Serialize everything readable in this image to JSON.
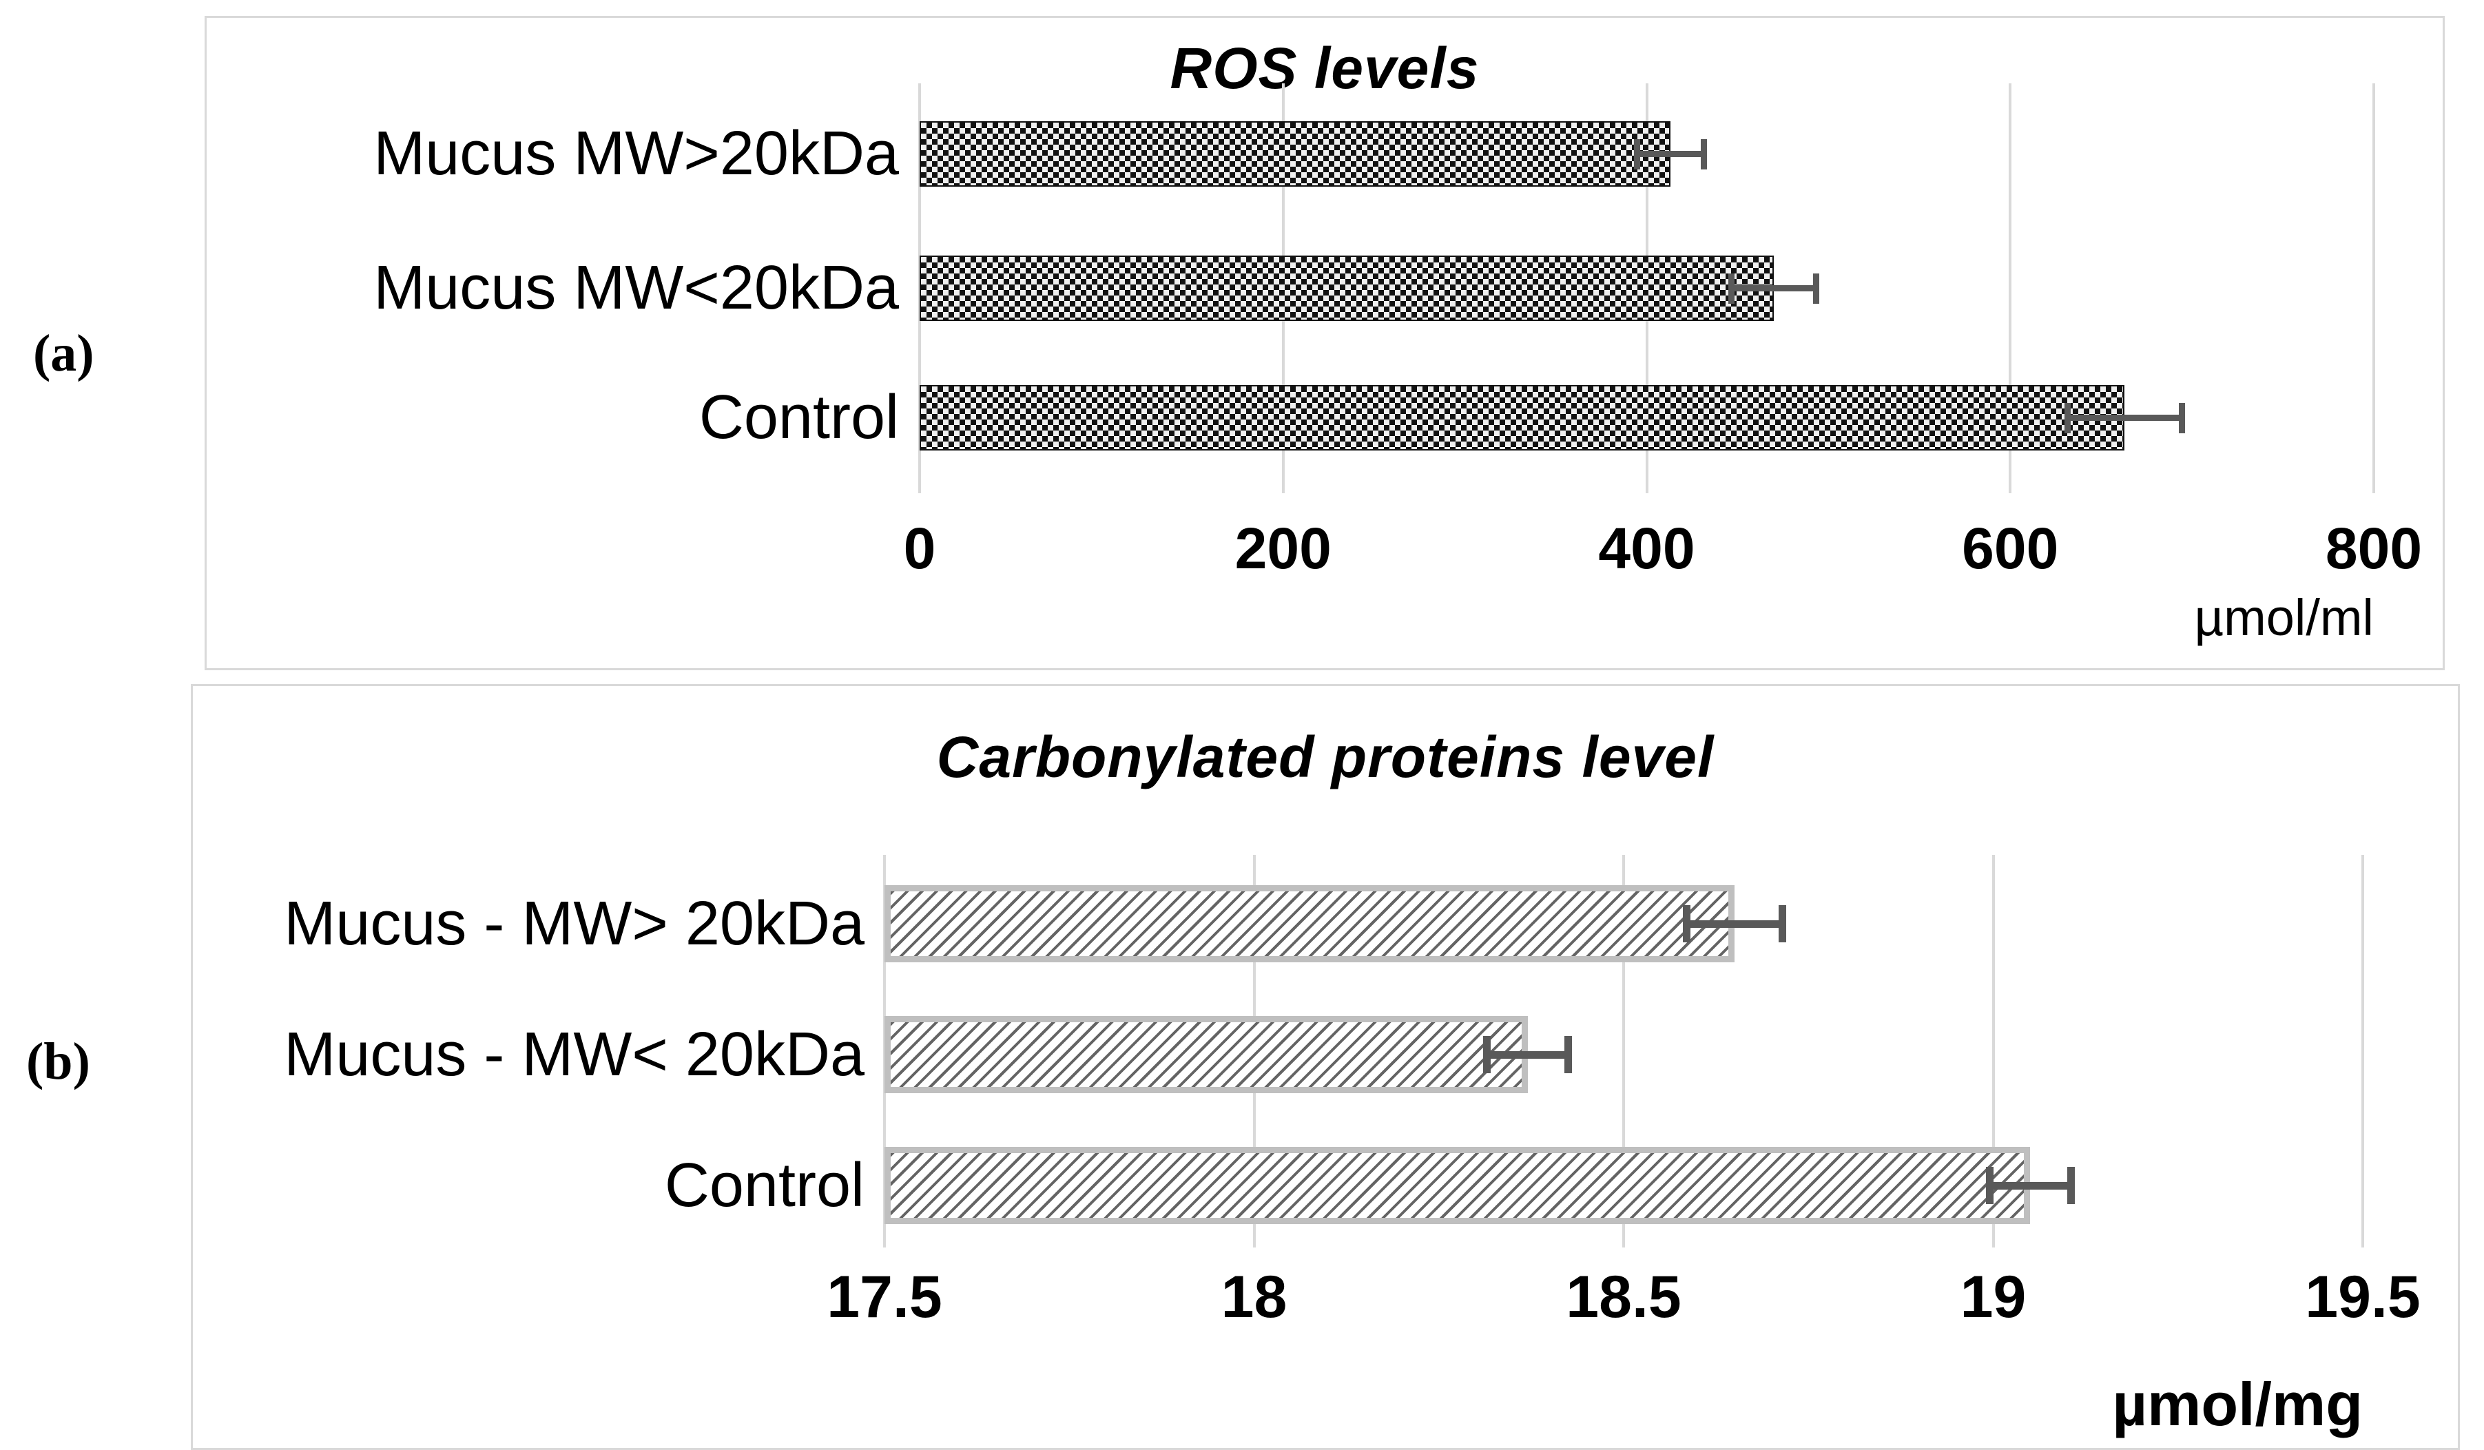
{
  "figure": {
    "panel_a_letter": "(a)",
    "panel_b_letter": "(b)"
  },
  "colors": {
    "gridline": "#d9d9d9",
    "panel_border": "#d9d9d9",
    "error_bar": "#595959",
    "hatch_line": "#646464",
    "hatch_bar_border": "#bfbfbf",
    "checker_dark": "#121212",
    "text": "#000000"
  },
  "chart_data": [
    {
      "id": "a",
      "type": "bar",
      "orientation": "horizontal",
      "title": "ROS levels",
      "categories": [
        "Mucus MW>20kDa",
        "Mucus MW<20kDa",
        "Control"
      ],
      "values": [
        413,
        470,
        663
      ],
      "errors": [
        20,
        25,
        33
      ],
      "xlabel": "µmol/ml",
      "xlim": [
        0,
        800
      ],
      "xticks": [
        0,
        200,
        400,
        600,
        800
      ],
      "xtick_labels": [
        "0",
        "200",
        "400",
        "600",
        "800"
      ],
      "grid": true,
      "legend": "none",
      "bar_pattern": "black-white-checkerboard"
    },
    {
      "id": "b",
      "type": "bar",
      "orientation": "horizontal",
      "title": "Carbonylated proteins level",
      "categories": [
        "Mucus - MW> 20kDa",
        "Mucus - MW< 20kDa",
        "Control"
      ],
      "values": [
        18.65,
        18.37,
        19.05
      ],
      "errors": [
        0.07,
        0.06,
        0.06
      ],
      "xlabel": "µmol/mg",
      "xlim": [
        17.5,
        19.5
      ],
      "xticks": [
        17.5,
        18,
        18.5,
        19,
        19.5
      ],
      "xtick_labels": [
        "17.5",
        "18",
        "18.5",
        "19",
        "19.5"
      ],
      "grid": true,
      "legend": "none",
      "bar_pattern": "diagonal-hatch"
    }
  ]
}
